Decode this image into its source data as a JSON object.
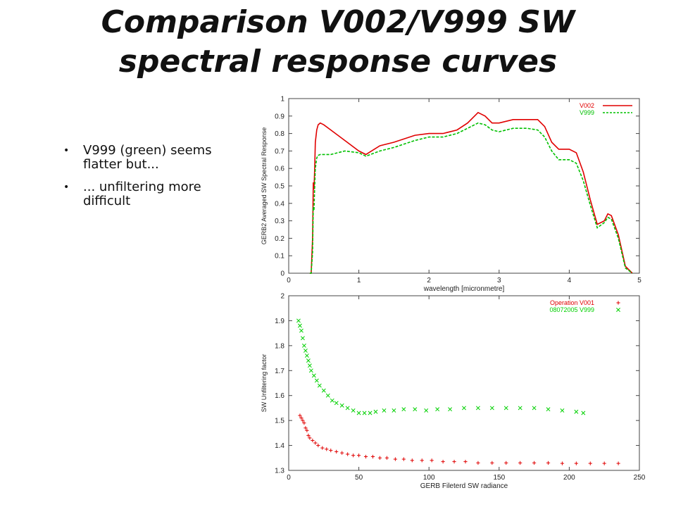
{
  "slide": {
    "title_line1": "Comparison V002/V999 SW",
    "title_line2": "spectral response curves",
    "bullets": [
      "V999 (green) seems flatter but...",
      "... unfiltering more difficult"
    ],
    "bullet_glyph": "•"
  },
  "chart_data": [
    {
      "type": "line",
      "xlabel": "wavelength [micronmetre]",
      "ylabel": "GERB2 Averaged SW Spectral Response",
      "xlim": [
        0,
        5
      ],
      "ylim": [
        0,
        1
      ],
      "xticks": [
        "0",
        "1",
        "2",
        "3",
        "4",
        "5"
      ],
      "yticks": [
        "0",
        "0.1",
        "0.2",
        "0.3",
        "0.4",
        "0.5",
        "0.6",
        "0.7",
        "0.8",
        "0.9",
        "1"
      ],
      "legend_position": "top-right",
      "grid": false,
      "series": [
        {
          "name": "V002",
          "color": "#e00000",
          "style": "solid",
          "x": [
            0.3,
            0.32,
            0.34,
            0.35,
            0.36,
            0.37,
            0.38,
            0.4,
            0.42,
            0.45,
            0.5,
            0.6,
            0.8,
            1.0,
            1.1,
            1.3,
            1.5,
            1.8,
            2.0,
            2.2,
            2.4,
            2.55,
            2.7,
            2.8,
            2.9,
            3.0,
            3.2,
            3.4,
            3.55,
            3.65,
            3.75,
            3.85,
            4.0,
            4.1,
            4.2,
            4.3,
            4.4,
            4.5,
            4.55,
            4.6,
            4.7,
            4.8,
            4.9
          ],
          "y": [
            0.0,
            0.0,
            0.2,
            0.52,
            0.48,
            0.6,
            0.75,
            0.82,
            0.85,
            0.86,
            0.85,
            0.82,
            0.76,
            0.7,
            0.68,
            0.73,
            0.75,
            0.79,
            0.8,
            0.8,
            0.82,
            0.86,
            0.92,
            0.9,
            0.86,
            0.86,
            0.88,
            0.88,
            0.88,
            0.84,
            0.75,
            0.71,
            0.71,
            0.69,
            0.58,
            0.42,
            0.28,
            0.3,
            0.34,
            0.33,
            0.22,
            0.04,
            0.0
          ]
        },
        {
          "name": "V999",
          "color": "#00c000",
          "style": "dashed",
          "x": [
            0.3,
            0.32,
            0.34,
            0.35,
            0.36,
            0.37,
            0.38,
            0.4,
            0.42,
            0.45,
            0.5,
            0.6,
            0.8,
            1.0,
            1.1,
            1.3,
            1.5,
            1.8,
            2.0,
            2.2,
            2.4,
            2.55,
            2.7,
            2.8,
            2.9,
            3.0,
            3.2,
            3.4,
            3.55,
            3.65,
            3.75,
            3.85,
            4.0,
            4.1,
            4.2,
            4.3,
            4.4,
            4.5,
            4.55,
            4.6,
            4.7,
            4.8,
            4.9
          ],
          "y": [
            0.0,
            0.0,
            0.12,
            0.38,
            0.36,
            0.5,
            0.6,
            0.66,
            0.675,
            0.68,
            0.68,
            0.68,
            0.7,
            0.69,
            0.67,
            0.7,
            0.72,
            0.76,
            0.78,
            0.78,
            0.8,
            0.83,
            0.86,
            0.85,
            0.82,
            0.81,
            0.83,
            0.83,
            0.82,
            0.78,
            0.7,
            0.65,
            0.65,
            0.63,
            0.53,
            0.39,
            0.26,
            0.29,
            0.32,
            0.31,
            0.2,
            0.03,
            0.0
          ]
        }
      ]
    },
    {
      "type": "scatter",
      "xlabel": "GERB Fileterd SW radiance",
      "ylabel": "SW Unfiltering factor",
      "xlim": [
        0,
        250
      ],
      "ylim": [
        1.3,
        2
      ],
      "xticks": [
        "0",
        "50",
        "100",
        "150",
        "200",
        "250"
      ],
      "yticks": [
        "1.3",
        "1.4",
        "1.5",
        "1.6",
        "1.7",
        "1.8",
        "1.9",
        "2"
      ],
      "legend_position": "top-right",
      "grid": false,
      "series": [
        {
          "name": "Operation V001",
          "color": "#e00000",
          "marker": "+",
          "x": [
            8,
            9,
            10,
            11,
            12,
            13,
            14,
            15,
            17,
            19,
            21,
            24,
            27,
            30,
            34,
            38,
            42,
            46,
            50,
            55,
            60,
            65,
            70,
            76,
            82,
            88,
            95,
            102,
            110,
            118,
            126,
            135,
            145,
            155,
            165,
            175,
            185,
            195,
            205,
            215,
            225,
            235
          ],
          "y": [
            1.52,
            1.51,
            1.5,
            1.49,
            1.47,
            1.46,
            1.44,
            1.43,
            1.42,
            1.41,
            1.4,
            1.39,
            1.385,
            1.38,
            1.375,
            1.37,
            1.365,
            1.36,
            1.36,
            1.355,
            1.355,
            1.35,
            1.35,
            1.345,
            1.345,
            1.34,
            1.34,
            1.34,
            1.335,
            1.335,
            1.335,
            1.33,
            1.33,
            1.33,
            1.33,
            1.33,
            1.33,
            1.328,
            1.328,
            1.328,
            1.328,
            1.328
          ]
        },
        {
          "name": "08072005 V999",
          "color": "#00d000",
          "marker": "x",
          "x": [
            7,
            8,
            9,
            10,
            11,
            12,
            13,
            14,
            15,
            16,
            18,
            20,
            22,
            25,
            28,
            31,
            34,
            38,
            42,
            46,
            50,
            54,
            58,
            62,
            68,
            75,
            82,
            90,
            98,
            106,
            115,
            125,
            135,
            145,
            155,
            165,
            175,
            185,
            195,
            205,
            210
          ],
          "y": [
            1.9,
            1.88,
            1.86,
            1.83,
            1.8,
            1.78,
            1.76,
            1.74,
            1.72,
            1.7,
            1.68,
            1.66,
            1.64,
            1.62,
            1.6,
            1.58,
            1.57,
            1.56,
            1.55,
            1.54,
            1.53,
            1.53,
            1.53,
            1.535,
            1.54,
            1.54,
            1.545,
            1.545,
            1.54,
            1.545,
            1.545,
            1.55,
            1.55,
            1.55,
            1.55,
            1.55,
            1.55,
            1.545,
            1.54,
            1.535,
            1.53
          ]
        }
      ]
    }
  ]
}
